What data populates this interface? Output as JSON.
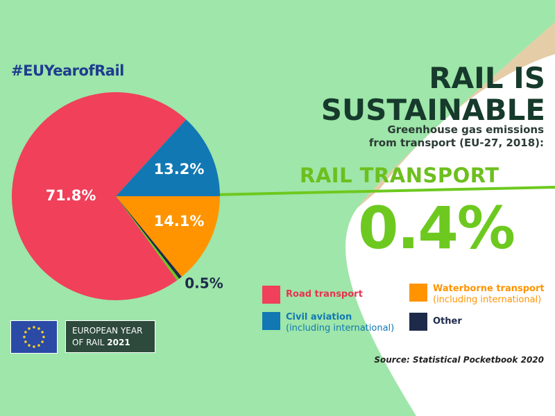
{
  "hashtag": "#EUYearofRail",
  "title_line1": "RAIL IS",
  "title_line2": "SUSTAINABLE",
  "subtitle_line1": "Greenhouse gas emissions",
  "subtitle_line2": "from transport (EU-27, 2018):",
  "rail_label": "RAIL TRANSPORT",
  "rail_value": "0.4%",
  "legend": {
    "road": "Road transport",
    "civil_aviation": "Civil aviation",
    "civil_aviation_sub": "(including international)",
    "waterborne": "Waterborne transport",
    "waterborne_sub": "(including international)",
    "other": "Other"
  },
  "badge": {
    "line1": "EUROPEAN YEAR",
    "line2_prefix": "OF RAIL ",
    "line2_year": "2021"
  },
  "source": "Source: Statistical Pocketbook 2020",
  "colors": {
    "road": "#f0405a",
    "civil_aviation": "#1178b3",
    "waterborne": "#ff9400",
    "other": "#1e2a4a",
    "rail": "#6dc91f",
    "green_bg": "#9ee6a9",
    "tan_band": "#e4cda7"
  },
  "chart_data": {
    "type": "pie",
    "title": "",
    "slices": [
      {
        "label": "Road transport",
        "value": 71.8,
        "text": "71.8%"
      },
      {
        "label": "Civil aviation",
        "value": 13.2,
        "text": "13.2%"
      },
      {
        "label": "Waterborne transport",
        "value": 14.1,
        "text": "14.1%"
      },
      {
        "label": "Other",
        "value": 0.5,
        "text": "0.5%"
      },
      {
        "label": "Rail transport",
        "value": 0.4,
        "text": "0.4%"
      }
    ]
  }
}
